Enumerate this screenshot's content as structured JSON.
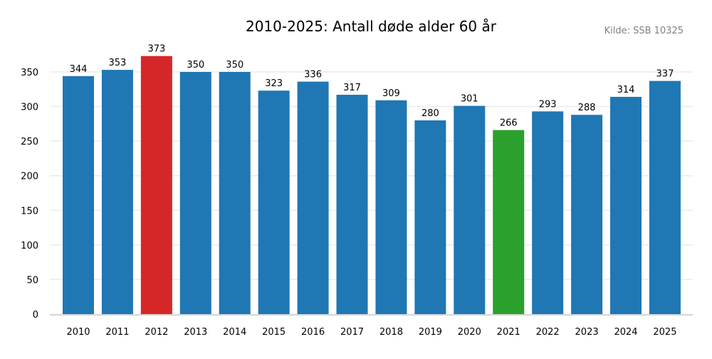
{
  "chart_data": {
    "type": "bar",
    "title": "2010-2025: Antall døde alder 60 år",
    "source": "Kilde: SSB 10325",
    "xlabel": "",
    "ylabel": "",
    "ylim": [
      0,
      373
    ],
    "yticks": [
      0,
      50,
      100,
      150,
      200,
      250,
      300,
      350
    ],
    "grid": "horizontal",
    "categories": [
      "2010",
      "2011",
      "2012",
      "2013",
      "2014",
      "2015",
      "2016",
      "2017",
      "2018",
      "2019",
      "2020",
      "2021",
      "2022",
      "2023",
      "2024",
      "2025"
    ],
    "values": [
      344,
      353,
      373,
      350,
      350,
      323,
      336,
      317,
      309,
      280,
      301,
      266,
      293,
      288,
      314,
      337
    ],
    "colors": {
      "default": "#1f77b4",
      "max": "#d62728",
      "min": "#2ca02c",
      "grid": "#ebebeb",
      "axis": "#d9d9d9",
      "source_text": "#808080"
    },
    "highlight": {
      "max_category": "2012",
      "min_category": "2021"
    }
  }
}
